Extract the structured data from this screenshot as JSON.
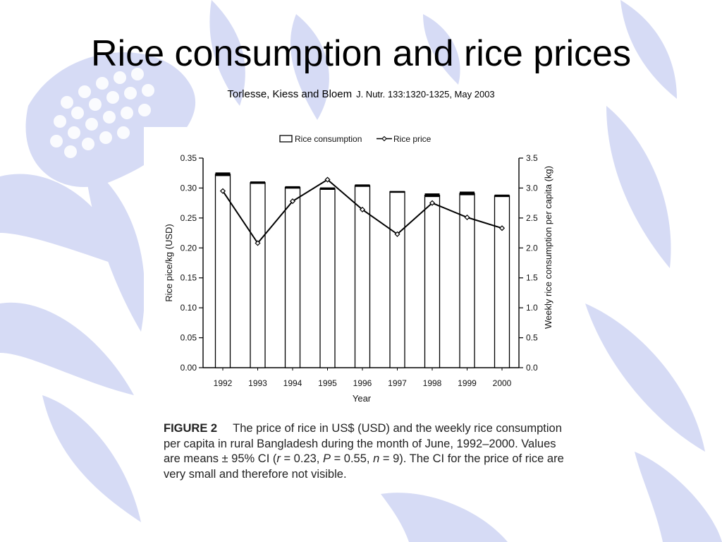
{
  "slide": {
    "title": "Rice consumption and rice prices",
    "authors": "Torlesse, Kiess and Bloem",
    "journal": "J. Nutr. 133:1320-1325, May 2003",
    "background_color": "#d6dbf5"
  },
  "figure": {
    "label": "FIGURE 2",
    "caption_parts": [
      "The price of rice in US$ (USD) and the weekly rice consumption per capita in rural Bangladesh during the month of June, 1992–2000. Values are means ± 95% CI (",
      "r",
      " = 0.23, ",
      "P",
      " = 0.55, ",
      "n",
      " = 9). The CI for the price of rice are very small and therefore not visible."
    ]
  },
  "chart_data": {
    "type": "bar",
    "categories": [
      "1992",
      "1993",
      "1994",
      "1995",
      "1996",
      "1997",
      "1998",
      "1999",
      "2000"
    ],
    "xlabel": "Year",
    "ylabel_left": "Rice pice/kg (USD)",
    "ylabel_right": "Weekly rice consumption per capita (kg)",
    "ylim_left": [
      0,
      0.35
    ],
    "ylim_right": [
      0,
      3.5
    ],
    "yticks_left": [
      "0.00",
      "0.05",
      "0.10",
      "0.15",
      "0.20",
      "0.25",
      "0.30",
      "0.35"
    ],
    "yticks_right": [
      "0.0",
      "0.5",
      "1.0",
      "1.5",
      "2.0",
      "2.5",
      "3.0",
      "3.5"
    ],
    "legend_position": "top",
    "grid": false,
    "series": [
      {
        "name": "Rice consumption",
        "kind": "bar",
        "axis": "right",
        "values": [
          3.23,
          3.09,
          3.01,
          2.99,
          3.04,
          2.94,
          2.88,
          2.91,
          2.87
        ],
        "ci": [
          0.03,
          0.02,
          0.02,
          0.02,
          0.02,
          0.01,
          0.03,
          0.03,
          0.02
        ]
      },
      {
        "name": "Rice price",
        "kind": "line",
        "axis": "left",
        "values": [
          0.295,
          0.208,
          0.278,
          0.314,
          0.264,
          0.223,
          0.275,
          0.251,
          0.233
        ]
      }
    ]
  }
}
